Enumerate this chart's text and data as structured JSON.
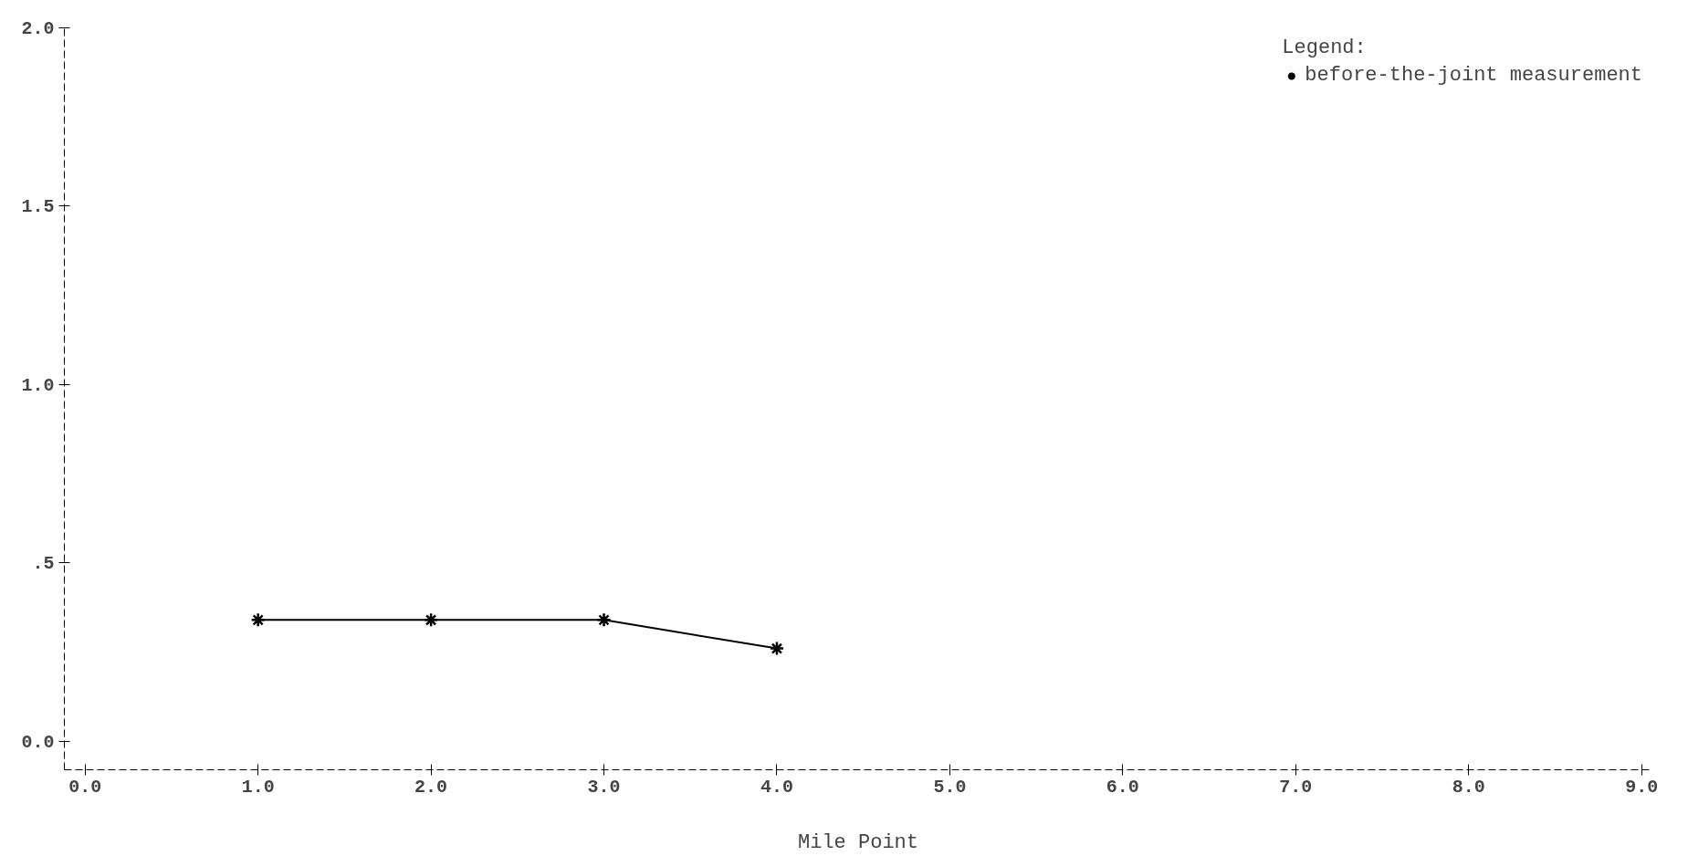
{
  "chart_data": {
    "type": "line",
    "xlabel": "Mile Point",
    "legend_title": "Legend:",
    "x": [
      1.0,
      2.0,
      3.0,
      4.0
    ],
    "series": [
      {
        "name": "before-the-joint measurement",
        "color": "#000000",
        "values": [
          0.34,
          0.34,
          0.34,
          0.26
        ]
      }
    ],
    "xlim": [
      -0.12,
      9.06
    ],
    "ylim": [
      -0.08,
      2.0
    ],
    "xticks": [
      {
        "value": 0,
        "label": "0.0"
      },
      {
        "value": 1,
        "label": "1.0"
      },
      {
        "value": 2,
        "label": "2.0"
      },
      {
        "value": 3,
        "label": "3.0"
      },
      {
        "value": 4,
        "label": "4.0"
      },
      {
        "value": 5,
        "label": "5.0"
      },
      {
        "value": 6,
        "label": "6.0"
      },
      {
        "value": 7,
        "label": "7.0"
      },
      {
        "value": 8,
        "label": "8.0"
      },
      {
        "value": 9,
        "label": "9.0"
      }
    ],
    "yticks": [
      {
        "value": 0,
        "label": "0.0"
      },
      {
        "value": 0.5,
        "label": ".5"
      },
      {
        "value": 1.0,
        "label": "1.0"
      },
      {
        "value": 1.5,
        "label": "1.5"
      },
      {
        "value": 2.0,
        "label": "2.0"
      }
    ],
    "grid": false,
    "legend": "top right",
    "marker": "cross",
    "line_style": "solid"
  }
}
